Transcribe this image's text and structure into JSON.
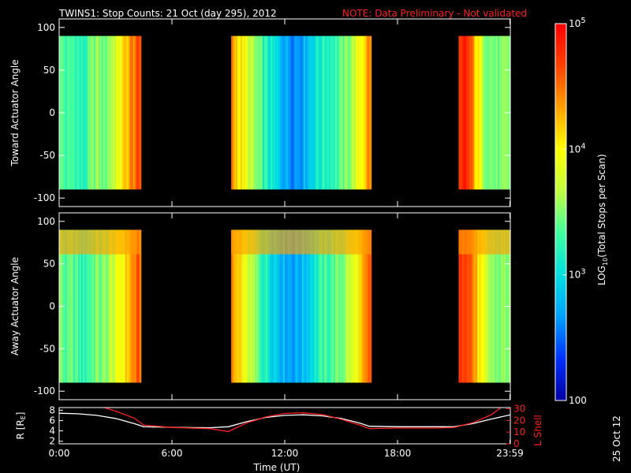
{
  "header": {
    "title": "TWINS1: Stop Counts: 21 Oct (day 295), 2012",
    "note": "NOTE: Data Preliminary - Not validated"
  },
  "side_stamp": "25 Oct 12",
  "colorbar": {
    "label_main": "LOG",
    "label_sub": "10",
    "label_tail": "(Total Stops per Scan)",
    "ticks": [
      {
        "label": "100",
        "value": 100
      },
      {
        "label": "10",
        "sup": "3",
        "value": 1000
      },
      {
        "label": "10",
        "sup": "4",
        "value": 10000
      },
      {
        "label": "10",
        "sup": "5",
        "value": 100000
      }
    ],
    "colors": [
      "#0000a0",
      "#0030ff",
      "#00a0ff",
      "#00e0e0",
      "#40ffa0",
      "#c0ff40",
      "#ffff00",
      "#ffa000",
      "#ff4000",
      "#ff0000"
    ]
  },
  "chart_data": [
    {
      "type": "heatmap",
      "ylabel": "Toward Actuator Angle",
      "ylim": [
        -110,
        110
      ],
      "yticks": [
        "100",
        "50",
        "0",
        "-50",
        "-100"
      ],
      "ytick_values": [
        100,
        50,
        0,
        -50,
        -100
      ],
      "xlim": [
        0,
        24
      ],
      "angle_range": [
        -90,
        90
      ],
      "blocks": [
        {
          "x0": 0.0,
          "x1": 4.35,
          "levels": [
            0.48,
            0.42,
            0.45,
            0.38,
            0.44,
            0.52,
            0.47,
            0.55,
            0.62,
            0.72,
            0.82,
            0.86
          ]
        },
        {
          "x0": 9.15,
          "x1": 16.6,
          "levels": [
            0.8,
            0.7,
            0.6,
            0.5,
            0.42,
            0.36,
            0.3,
            0.25,
            0.22,
            0.24,
            0.3,
            0.36,
            0.4,
            0.42,
            0.44,
            0.5,
            0.58,
            0.7,
            0.82
          ]
        },
        {
          "x0": 21.25,
          "x1": 24.0,
          "levels": [
            0.85,
            0.95,
            0.82,
            0.66,
            0.55,
            0.5,
            0.48,
            0.47,
            0.5
          ]
        }
      ]
    },
    {
      "type": "heatmap",
      "ylabel": "Away Actuator Angle",
      "ylim": [
        -110,
        110
      ],
      "yticks": [
        "100",
        "50",
        "0",
        "-50",
        "-100"
      ],
      "ytick_values": [
        100,
        50,
        0,
        -50,
        -100
      ],
      "xlim": [
        0,
        24
      ],
      "angle_range": [
        -90,
        90
      ],
      "blocks": [
        {
          "x0": 0.0,
          "x1": 4.35,
          "levels": [
            0.5,
            0.44,
            0.46,
            0.4,
            0.45,
            0.5,
            0.48,
            0.56,
            0.62,
            0.7,
            0.8,
            0.85
          ]
        },
        {
          "x0": 9.15,
          "x1": 16.6,
          "levels": [
            0.78,
            0.68,
            0.6,
            0.5,
            0.42,
            0.36,
            0.3,
            0.26,
            0.24,
            0.26,
            0.32,
            0.38,
            0.42,
            0.45,
            0.48,
            0.55,
            0.62,
            0.72,
            0.85
          ]
        },
        {
          "x0": 21.25,
          "x1": 24.0,
          "levels": [
            0.88,
            0.96,
            0.84,
            0.7,
            0.58,
            0.52,
            0.5,
            0.5,
            0.52
          ]
        }
      ]
    },
    {
      "type": "line",
      "ylabel": "R [R",
      "ylabel_sub": "E",
      "ylabel_tail": "]",
      "y2label": "L Shell",
      "xlabel": "Time (UT)",
      "xlim": [
        0,
        24
      ],
      "xticks": [
        "0:00",
        "6:00",
        "12:00",
        "18:00",
        "23:59"
      ],
      "xtick_values": [
        0,
        6,
        12,
        18,
        23.98
      ],
      "ylim": [
        1.5,
        8.5
      ],
      "yticks": [
        "8",
        "6",
        "4",
        "2"
      ],
      "ytick_values": [
        8,
        6,
        4,
        2
      ],
      "y2lim": [
        0,
        31
      ],
      "y2ticks": [
        "30",
        "20",
        "10",
        "0"
      ],
      "y2tick_values": [
        30,
        20,
        10,
        0
      ],
      "series": [
        {
          "color": "#ffffff",
          "axis": "left",
          "x": [
            0,
            1,
            2,
            3,
            4,
            4.5,
            6,
            8,
            9,
            10,
            11,
            12,
            13,
            14,
            15,
            16,
            16.5,
            18,
            20,
            21,
            22,
            23,
            24
          ],
          "y": [
            7.4,
            7.3,
            7.0,
            6.4,
            5.4,
            4.8,
            4.7,
            4.6,
            4.8,
            5.8,
            6.6,
            7.0,
            7.1,
            6.9,
            6.4,
            5.5,
            4.9,
            4.8,
            4.8,
            4.8,
            5.4,
            6.3,
            7.1
          ]
        },
        {
          "color": "#ff2020",
          "axis": "right",
          "x": [
            2.4,
            3,
            4,
            4.5,
            6,
            8,
            9,
            10,
            11,
            12,
            13,
            14,
            15,
            16,
            16.5,
            18,
            20,
            21,
            22,
            23,
            23.5
          ],
          "y": [
            31,
            28,
            22,
            16,
            14,
            13,
            10.5,
            18,
            23,
            26,
            26.5,
            25,
            21,
            16,
            13,
            13.5,
            13.5,
            14,
            18,
            25,
            31
          ]
        }
      ]
    }
  ]
}
